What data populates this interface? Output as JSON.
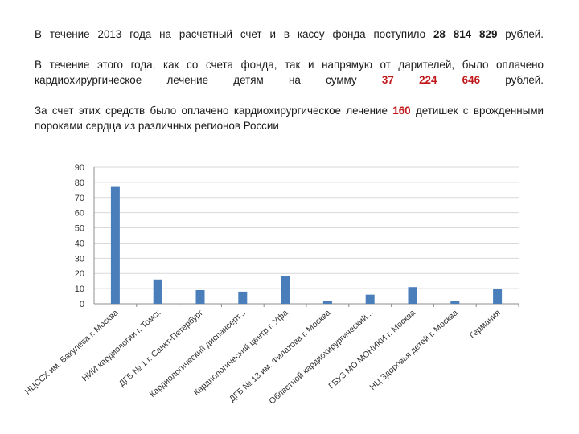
{
  "text": {
    "p1_before": "В течение 2013 года на расчетный счет и в кассу фонда поступило ",
    "p1_amount": "28 814 829",
    "p1_after": " рублей.",
    "p2_before": "В течение этого года, как со счета фонда, так и напрямую от дарителей, было оплачено кардиохирургическое лечение детям на сумму ",
    "p2_amount": "37 224 646",
    "p2_after": " рублей.",
    "p3_before": "За счет этих средств было оплачено кардиохирургическое лечение ",
    "p3_count": "160",
    "p3_after": " детишек с врожденными пороками сердца из различных регионов России"
  },
  "colors": {
    "bar": "#4a7ebb",
    "highlight": "#c0181b",
    "grid": "#d9d9d9",
    "axis": "#8c8c8c"
  },
  "chart_data": {
    "type": "bar",
    "categories": [
      "НЦССХ им. Бакулева г. Москва",
      "НИИ кардиологии г. Томск",
      "ДГБ № 1 г. Санкт-Петербург",
      "Кардиологический диспансерт...",
      "Кардиологический центр г. Уфа",
      "ДГБ № 13 им. Филатова г. Москва",
      "Областной кардиохирургический...",
      "ГБУЗ МО МОНИКИ г. Москва",
      "НЦ Здоровья детей г. Москва",
      "Германия"
    ],
    "values": [
      77,
      16,
      9,
      8,
      18,
      2,
      6,
      11,
      2,
      10
    ],
    "ylim": [
      0,
      90
    ],
    "yticks": [
      0,
      10,
      20,
      30,
      40,
      50,
      60,
      70,
      80,
      90
    ],
    "grid": true,
    "legend": "none"
  }
}
